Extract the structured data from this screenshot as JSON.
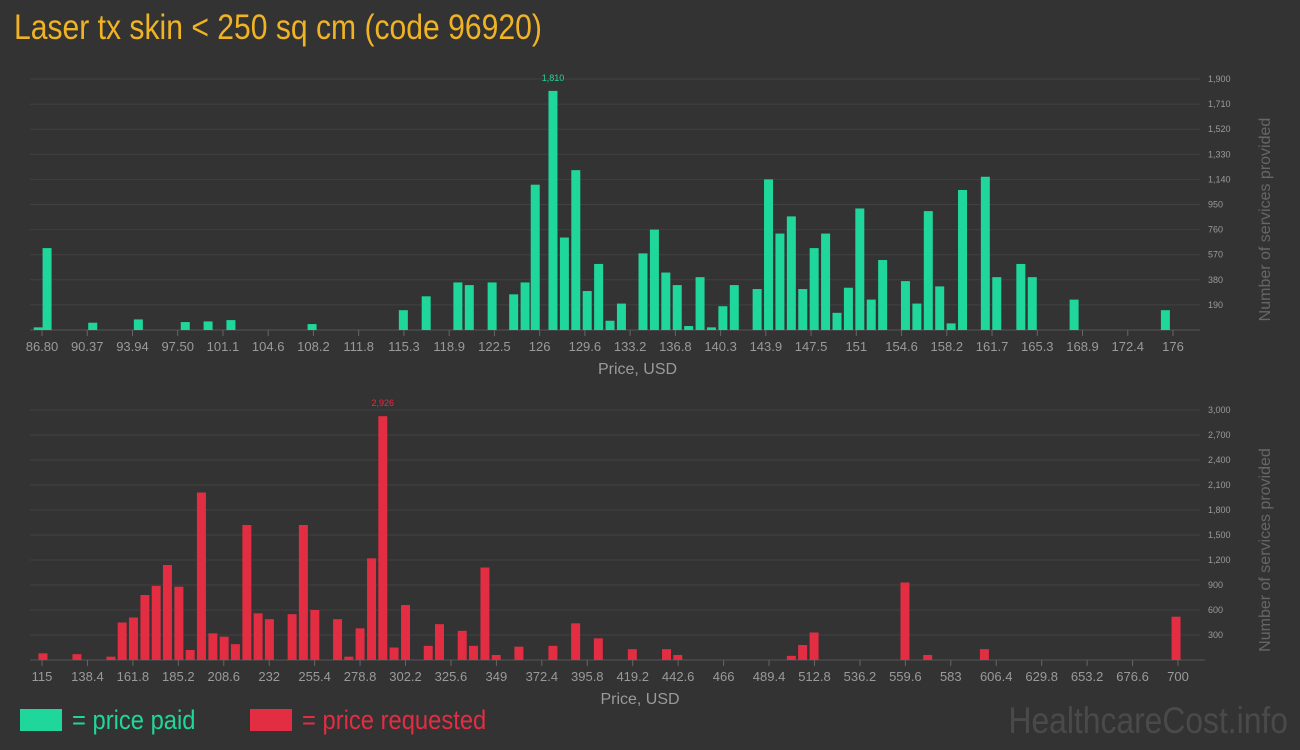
{
  "title": "Laser tx skin < 250 sq cm (code 96920)",
  "colors": {
    "paid": "#1fd69b",
    "requested": "#e22d42",
    "title": "#f0b323",
    "background": "#333333",
    "grid": "#414141",
    "axis_text": "#9a9a9a"
  },
  "legend": {
    "paid_label": "= price paid",
    "requested_label": "= price requested"
  },
  "watermark": "HealthcareCost.info",
  "chart_data": [
    {
      "type": "bar",
      "name": "price paid",
      "xlabel": "Price, USD",
      "ylabel": "Number of services provided",
      "x_ticks": [
        "86.80",
        "90.37",
        "93.94",
        "97.50",
        "101.1",
        "104.6",
        "108.2",
        "111.8",
        "115.3",
        "118.9",
        "122.5",
        "126",
        "129.6",
        "133.2",
        "136.8",
        "140.3",
        "143.9",
        "147.5",
        "151",
        "154.6",
        "158.2",
        "161.7",
        "165.3",
        "168.9",
        "172.4",
        "176"
      ],
      "y_ticks": [
        "190",
        "380",
        "570",
        "760",
        "950",
        "1,140",
        "1,330",
        "1,520",
        "1,710",
        "1,900"
      ],
      "ylim": [
        0,
        1900
      ],
      "xlim": [
        86.8,
        176
      ],
      "peak_label": "1,810",
      "grid": true,
      "bars": [
        [
          86.5,
          20
        ],
        [
          87.2,
          620
        ],
        [
          90.8,
          55
        ],
        [
          94.4,
          80
        ],
        [
          98.1,
          60
        ],
        [
          99.9,
          65
        ],
        [
          101.7,
          75
        ],
        [
          104.6,
          0
        ],
        [
          108.1,
          45
        ],
        [
          115.3,
          150
        ],
        [
          117.1,
          255
        ],
        [
          119.6,
          360
        ],
        [
          120.5,
          340
        ],
        [
          122.3,
          360
        ],
        [
          124.0,
          270
        ],
        [
          124.9,
          360
        ],
        [
          125.7,
          1100
        ],
        [
          127.1,
          1810
        ],
        [
          128.0,
          700
        ],
        [
          128.9,
          1210
        ],
        [
          129.8,
          295
        ],
        [
          130.7,
          500
        ],
        [
          131.6,
          70
        ],
        [
          132.5,
          200
        ],
        [
          134.2,
          580
        ],
        [
          135.1,
          760
        ],
        [
          136.0,
          435
        ],
        [
          136.9,
          340
        ],
        [
          137.8,
          30
        ],
        [
          138.7,
          400
        ],
        [
          139.6,
          20
        ],
        [
          140.5,
          180
        ],
        [
          141.4,
          340
        ],
        [
          143.2,
          310
        ],
        [
          144.1,
          1140
        ],
        [
          145.0,
          730
        ],
        [
          145.9,
          860
        ],
        [
          146.8,
          310
        ],
        [
          147.7,
          620
        ],
        [
          148.6,
          730
        ],
        [
          149.5,
          130
        ],
        [
          150.4,
          320
        ],
        [
          151.3,
          920
        ],
        [
          152.2,
          230
        ],
        [
          153.1,
          530
        ],
        [
          154.9,
          370
        ],
        [
          155.8,
          200
        ],
        [
          156.7,
          900
        ],
        [
          157.6,
          330
        ],
        [
          158.5,
          50
        ],
        [
          159.4,
          1060
        ],
        [
          161.2,
          1160
        ],
        [
          162.1,
          400
        ],
        [
          164.0,
          500
        ],
        [
          164.9,
          400
        ],
        [
          168.2,
          230
        ],
        [
          175.4,
          150
        ]
      ]
    },
    {
      "type": "bar",
      "name": "price requested",
      "xlabel": "Price, USD",
      "ylabel": "Number of services provided",
      "x_ticks": [
        "115",
        "138.4",
        "161.8",
        "185.2",
        "208.6",
        "232",
        "255.4",
        "278.8",
        "302.2",
        "325.6",
        "349",
        "372.4",
        "395.8",
        "419.2",
        "442.6",
        "466",
        "489.4",
        "512.8",
        "536.2",
        "559.6",
        "583",
        "606.4",
        "629.8",
        "653.2",
        "676.6",
        "700"
      ],
      "y_ticks": [
        "300",
        "600",
        "900",
        "1,200",
        "1,500",
        "1,800",
        "2,100",
        "2,400",
        "2,700",
        "3,000"
      ],
      "ylim": [
        0,
        3000
      ],
      "xlim": [
        115,
        700
      ],
      "peak_label": "2,926",
      "grid": true,
      "bars": [
        [
          115.5,
          80
        ],
        [
          133.0,
          70
        ],
        [
          150.5,
          40
        ],
        [
          156.3,
          450
        ],
        [
          162.1,
          510
        ],
        [
          168.0,
          780
        ],
        [
          173.8,
          890
        ],
        [
          179.6,
          1140
        ],
        [
          185.5,
          880
        ],
        [
          191.3,
          120
        ],
        [
          197.1,
          2010
        ],
        [
          203.0,
          320
        ],
        [
          208.8,
          280
        ],
        [
          214.6,
          190
        ],
        [
          220.5,
          1620
        ],
        [
          226.3,
          560
        ],
        [
          232.1,
          490
        ],
        [
          243.8,
          550
        ],
        [
          249.6,
          1620
        ],
        [
          255.5,
          600
        ],
        [
          267.2,
          490
        ],
        [
          273.0,
          40
        ],
        [
          278.8,
          380
        ],
        [
          284.7,
          1220
        ],
        [
          290.5,
          2926
        ],
        [
          296.3,
          150
        ],
        [
          302.2,
          660
        ],
        [
          313.9,
          170
        ],
        [
          319.7,
          430
        ],
        [
          331.4,
          350
        ],
        [
          337.2,
          170
        ],
        [
          343.1,
          1110
        ],
        [
          348.9,
          60
        ],
        [
          360.6,
          160
        ],
        [
          378.1,
          170
        ],
        [
          389.8,
          440
        ],
        [
          401.5,
          260
        ],
        [
          419.0,
          130
        ],
        [
          436.6,
          130
        ],
        [
          442.4,
          60
        ],
        [
          500.9,
          50
        ],
        [
          506.7,
          180
        ],
        [
          512.6,
          330
        ],
        [
          559.4,
          930
        ],
        [
          571.1,
          60
        ],
        [
          600.3,
          130
        ],
        [
          699.0,
          520
        ]
      ]
    }
  ]
}
